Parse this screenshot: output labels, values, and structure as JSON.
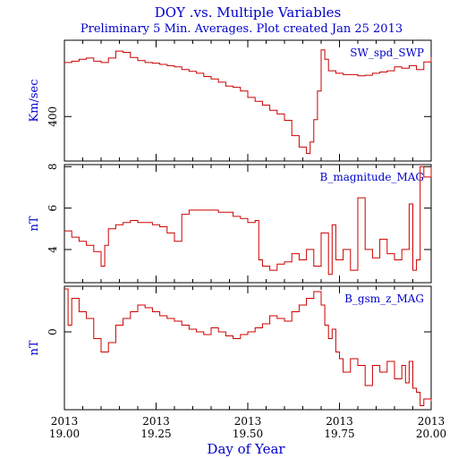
{
  "title": "DOY .vs. Multiple Variables",
  "subtitle": "Preliminary 5 Min. Averages. Plot created Jan 25 2013",
  "xlabel": "Day of Year",
  "colors": {
    "line": "#cc0000",
    "text": "#0000cc",
    "axes": "#000000"
  },
  "chart_data": [
    {
      "type": "line",
      "series_label": "SW_spd_SWP",
      "ylabel": "Km/sec",
      "ylim": [
        330,
        520
      ],
      "yticks": [
        400
      ],
      "ytick_labels": [
        "400"
      ],
      "x": [
        19.0,
        19.02,
        19.04,
        19.06,
        19.08,
        19.1,
        19.12,
        19.14,
        19.16,
        19.18,
        19.2,
        19.22,
        19.24,
        19.26,
        19.28,
        19.3,
        19.32,
        19.34,
        19.36,
        19.38,
        19.4,
        19.42,
        19.44,
        19.46,
        19.48,
        19.5,
        19.52,
        19.54,
        19.56,
        19.58,
        19.6,
        19.62,
        19.64,
        19.66,
        19.67,
        19.68,
        19.69,
        19.7,
        19.71,
        19.72,
        19.74,
        19.76,
        19.78,
        19.8,
        19.82,
        19.84,
        19.86,
        19.88,
        19.9,
        19.92,
        19.94,
        19.96,
        19.98,
        20.0
      ],
      "values": [
        485,
        487,
        490,
        492,
        487,
        485,
        492,
        503,
        501,
        493,
        488,
        485,
        484,
        482,
        480,
        478,
        474,
        471,
        468,
        463,
        459,
        454,
        448,
        446,
        440,
        430,
        424,
        418,
        410,
        404,
        394,
        370,
        352,
        342,
        360,
        395,
        440,
        505,
        490,
        472,
        468,
        466,
        466,
        464,
        465,
        468,
        470,
        472,
        478,
        476,
        480,
        474,
        486,
        494
      ]
    },
    {
      "type": "line",
      "series_label": "B_magnitude_MAG",
      "ylabel": "nT",
      "ylim": [
        2.4,
        8.1
      ],
      "yticks": [
        4,
        6,
        8
      ],
      "ytick_labels": [
        "4",
        "6",
        "8"
      ],
      "x": [
        19.0,
        19.02,
        19.04,
        19.06,
        19.08,
        19.1,
        19.11,
        19.12,
        19.14,
        19.16,
        19.18,
        19.2,
        19.22,
        19.24,
        19.26,
        19.28,
        19.3,
        19.32,
        19.34,
        19.36,
        19.38,
        19.4,
        19.42,
        19.44,
        19.46,
        19.48,
        19.5,
        19.52,
        19.53,
        19.54,
        19.56,
        19.58,
        19.6,
        19.62,
        19.64,
        19.66,
        19.68,
        19.7,
        19.72,
        19.73,
        19.74,
        19.76,
        19.78,
        19.8,
        19.82,
        19.84,
        19.86,
        19.88,
        19.9,
        19.92,
        19.94,
        19.95,
        19.96,
        19.97,
        19.98,
        20.0
      ],
      "values": [
        4.9,
        4.6,
        4.4,
        4.2,
        3.9,
        3.2,
        4.2,
        5.0,
        5.2,
        5.3,
        5.4,
        5.3,
        5.3,
        5.2,
        5.1,
        4.8,
        4.4,
        5.7,
        5.9,
        5.9,
        5.9,
        5.9,
        5.8,
        5.8,
        5.6,
        5.5,
        5.3,
        5.4,
        3.5,
        3.2,
        3.0,
        3.3,
        3.4,
        3.8,
        3.5,
        4.0,
        3.2,
        4.8,
        2.8,
        5.2,
        3.5,
        4.0,
        3.0,
        6.5,
        4.0,
        3.6,
        4.5,
        3.8,
        3.5,
        4.0,
        6.2,
        3.0,
        3.5,
        8.0,
        7.5,
        8.0
      ]
    },
    {
      "type": "line",
      "series_label": "B_gsm_z_MAG",
      "ylabel": "nT",
      "ylim": [
        -5.8,
        3.4
      ],
      "yticks": [
        0
      ],
      "ytick_labels": [
        "0"
      ],
      "x": [
        19.0,
        19.01,
        19.02,
        19.04,
        19.06,
        19.08,
        19.1,
        19.12,
        19.14,
        19.16,
        19.18,
        19.2,
        19.22,
        19.24,
        19.26,
        19.28,
        19.3,
        19.32,
        19.34,
        19.36,
        19.38,
        19.4,
        19.42,
        19.44,
        19.46,
        19.48,
        19.5,
        19.52,
        19.54,
        19.56,
        19.58,
        19.6,
        19.62,
        19.64,
        19.66,
        19.68,
        19.7,
        19.71,
        19.72,
        19.73,
        19.74,
        19.75,
        19.76,
        19.78,
        19.8,
        19.82,
        19.84,
        19.86,
        19.88,
        19.9,
        19.92,
        19.93,
        19.94,
        19.95,
        19.96,
        19.97,
        19.98,
        20.0
      ],
      "values": [
        3.2,
        0.5,
        2.5,
        1.5,
        1.0,
        -0.5,
        -1.5,
        -0.8,
        0.5,
        1.0,
        1.5,
        2.0,
        1.8,
        1.5,
        1.2,
        1.0,
        0.8,
        0.5,
        0.2,
        0.0,
        -0.2,
        0.3,
        0.0,
        -0.3,
        -0.5,
        -0.2,
        0.0,
        0.3,
        0.6,
        1.2,
        1.0,
        0.8,
        1.5,
        2.0,
        2.5,
        3.0,
        2.0,
        0.5,
        -0.5,
        0.2,
        -1.5,
        -2.0,
        -3.0,
        -2.0,
        -2.5,
        -4.0,
        -2.5,
        -3.0,
        -2.2,
        -3.5,
        -2.5,
        -3.8,
        -2.2,
        -4.2,
        -4.5,
        -5.5,
        -5.0,
        -5.2
      ]
    }
  ],
  "xaxis": {
    "xlim": [
      19.0,
      20.0
    ],
    "ticks": [
      19.0,
      19.25,
      19.5,
      19.75,
      20.0
    ],
    "year_labels": [
      "2013",
      "2013",
      "2013",
      "2013",
      "2013"
    ],
    "doy_labels": [
      "19.00",
      "19.25",
      "19.50",
      "19.75",
      "20.00"
    ]
  }
}
